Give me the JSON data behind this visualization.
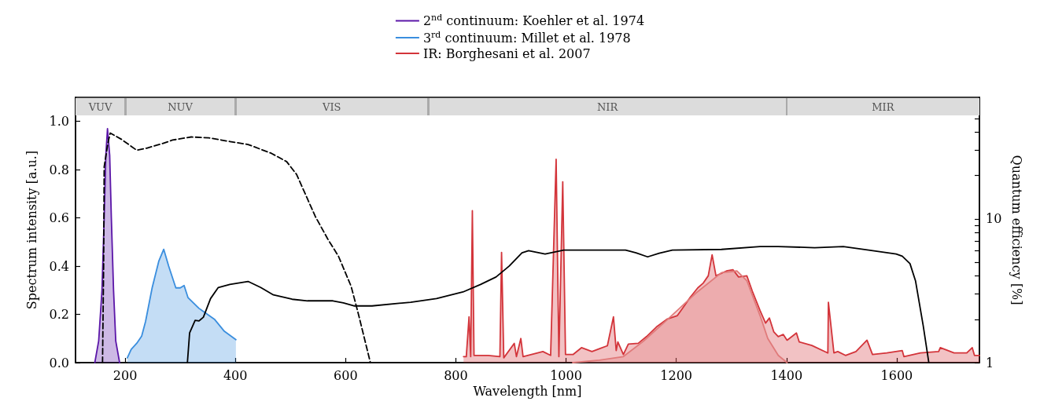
{
  "chart_data": {
    "type": "line",
    "xlabel": "Wavelength [nm]",
    "ylabel": "Spectrum intensity [a.u.]",
    "y2label": "Quantum efficiency [%]",
    "xlim": [
      110,
      1750
    ],
    "xticks": [
      200,
      400,
      600,
      800,
      1000,
      1200,
      1400,
      1600
    ],
    "ylim": [
      0,
      1.1
    ],
    "yticks": [
      {
        "value": 0,
        "label": "0.0"
      },
      0.2,
      0.4,
      0.6,
      0.8,
      {
        "value": 1,
        "label": "1.0"
      }
    ],
    "y2lim": [
      1,
      70
    ],
    "y2ticks": [
      1,
      {
        "value": 2,
        "label": null
      },
      {
        "value": 3,
        "label": null
      },
      {
        "value": 4,
        "label": null
      },
      {
        "value": 5,
        "label": null
      },
      {
        "value": 6,
        "label": null
      },
      {
        "value": 7,
        "label": null
      },
      {
        "value": 8,
        "label": null
      },
      {
        "value": 9,
        "label": null
      },
      10,
      {
        "value": 20,
        "label": null
      },
      {
        "value": 30,
        "label": null
      },
      {
        "value": 40,
        "label": null
      },
      {
        "value": 50,
        "label": null
      },
      {
        "value": 60,
        "label": null
      }
    ],
    "log": "y2",
    "grid": false,
    "legend": "top",
    "marker": "none",
    "bands": [
      {
        "axis": "x",
        "from": 110,
        "to": 200,
        "label": "VUV",
        "color": "#dcdcdc"
      },
      {
        "axis": "x",
        "from": 200,
        "to": 400,
        "label": "NUV",
        "color": "#dcdcdc"
      },
      {
        "axis": "x",
        "from": 400,
        "to": 750,
        "label": "VIS",
        "color": "#dcdcdc"
      },
      {
        "axis": "x",
        "from": 750,
        "to": 1400,
        "label": "NIR",
        "color": "#dcdcdc"
      },
      {
        "axis": "x",
        "from": 1400,
        "to": 1750,
        "label": "MIR",
        "color": "#dcdcdc"
      }
    ],
    "series": [
      {
        "name": "2$^{nd}$ continuum: Koehler et al. 1974",
        "type": "area",
        "color": "#5b16a8",
        "x": [
          145,
          152,
          158,
          162,
          165,
          168,
          172,
          175,
          179,
          183,
          190
        ],
        "values": [
          0,
          0.09,
          0.3,
          0.6,
          0.86,
          0.97,
          0.86,
          0.6,
          0.3,
          0.09,
          0
        ]
      },
      {
        "name": "3$^{rd}$ continuum: Millet et al. 1978",
        "type": "area",
        "color": "#3a8ede",
        "x": [
          204,
          211,
          221,
          230,
          237,
          249,
          261,
          270,
          279,
          292,
          300,
          307,
          314,
          334,
          362,
          380,
          401
        ],
        "values": [
          0.02,
          0.055,
          0.08,
          0.11,
          0.17,
          0.31,
          0.42,
          0.47,
          0.4,
          0.31,
          0.31,
          0.32,
          0.27,
          0.225,
          0.18,
          0.13,
          0.095
        ]
      },
      {
        "name": "IR: Borghesani et al. 2007",
        "type": "area",
        "color": "#d3343a",
        "x": [
          814,
          819,
          824,
          827,
          830,
          833,
          859,
          880,
          883,
          887,
          906,
          910,
          918,
          922,
          958,
          972,
          982,
          987,
          994,
          999,
          1013,
          1028,
          1047,
          1075,
          1086,
          1091,
          1094,
          1104,
          1113,
          1131,
          1146,
          1164,
          1183,
          1202,
          1216,
          1225,
          1239,
          1249,
          1258,
          1265,
          1272,
          1291,
          1303,
          1313,
          1328,
          1338,
          1352,
          1362,
          1369,
          1377,
          1385,
          1394,
          1401,
          1418,
          1423,
          1446,
          1475,
          1476,
          1486,
          1493,
          1507,
          1526,
          1546,
          1556,
          1582,
          1610,
          1613,
          1643,
          1676,
          1679,
          1704,
          1727,
          1737,
          1741,
          1750
        ],
        "values": [
          0.025,
          0.025,
          0.19,
          0.025,
          0.63,
          0.03,
          0.03,
          0.025,
          0.457,
          0.02,
          0.08,
          0.025,
          0.1,
          0.025,
          0.046,
          0.03,
          0.843,
          0.025,
          0.75,
          0.034,
          0.034,
          0.062,
          0.046,
          0.07,
          0.19,
          0.05,
          0.086,
          0.034,
          0.077,
          0.08,
          0.108,
          0.148,
          0.18,
          0.195,
          0.24,
          0.27,
          0.31,
          0.33,
          0.36,
          0.447,
          0.36,
          0.38,
          0.385,
          0.355,
          0.36,
          0.296,
          0.216,
          0.164,
          0.185,
          0.127,
          0.108,
          0.117,
          0.093,
          0.123,
          0.086,
          0.071,
          0.04,
          0.25,
          0.04,
          0.046,
          0.03,
          0.046,
          0.093,
          0.034,
          0.04,
          0.05,
          0.025,
          0.04,
          0.046,
          0.062,
          0.04,
          0.04,
          0.062,
          0.03,
          0.03
        ]
      },
      {
        "type": "area",
        "color": "#e07a7a",
        "x": [
          1012,
          1060,
          1104,
          1141,
          1187,
          1235,
          1282,
          1310,
          1328,
          1352,
          1366,
          1385,
          1401
        ],
        "values": [
          0,
          0.01,
          0.025,
          0.09,
          0.185,
          0.287,
          0.373,
          0.38,
          0.34,
          0.195,
          0.1,
          0.03,
          0
        ]
      },
      {
        "axis": "y2",
        "color": "#000000",
        "line_style": "dashed",
        "x": [
          159,
          161,
          162,
          169,
          173,
          193,
          221,
          239,
          268,
          286,
          320,
          352,
          390,
          423,
          465,
          493,
          511,
          545,
          568,
          587,
          610,
          624,
          645
        ],
        "values": [
          1,
          4.7,
          23,
          34,
          39.5,
          35.8,
          30,
          31,
          33.4,
          35.3,
          37.1,
          36.6,
          34.5,
          32.9,
          28.6,
          25,
          20.4,
          10.4,
          7.2,
          5.5,
          3.4,
          2.12,
          1
        ]
      },
      {
        "axis": "y2",
        "color": "#000000",
        "line_style": "solid",
        "x": [
          313,
          317,
          327,
          334,
          342,
          355,
          369,
          390,
          423,
          446,
          469,
          503,
          531,
          577,
          596,
          615,
          648,
          718,
          765,
          813,
          845,
          873,
          897,
          920,
          932,
          962,
          996,
          1046,
          1108,
          1127,
          1148,
          1169,
          1193,
          1282,
          1352,
          1385,
          1451,
          1503,
          1549,
          1599,
          1610,
          1624,
          1634,
          1648,
          1658
        ],
        "values": [
          1,
          1.61,
          1.97,
          1.95,
          2.07,
          2.79,
          3.33,
          3.5,
          3.67,
          3.33,
          2.96,
          2.76,
          2.69,
          2.69,
          2.6,
          2.48,
          2.48,
          2.63,
          2.79,
          3.1,
          3.5,
          3.94,
          4.7,
          5.8,
          6,
          5.7,
          6.06,
          6.06,
          6.06,
          5.8,
          5.44,
          5.77,
          6.06,
          6.13,
          6.42,
          6.42,
          6.3,
          6.42,
          6.06,
          5.7,
          5.5,
          4.88,
          3.71,
          1.81,
          1.01
        ]
      }
    ]
  }
}
